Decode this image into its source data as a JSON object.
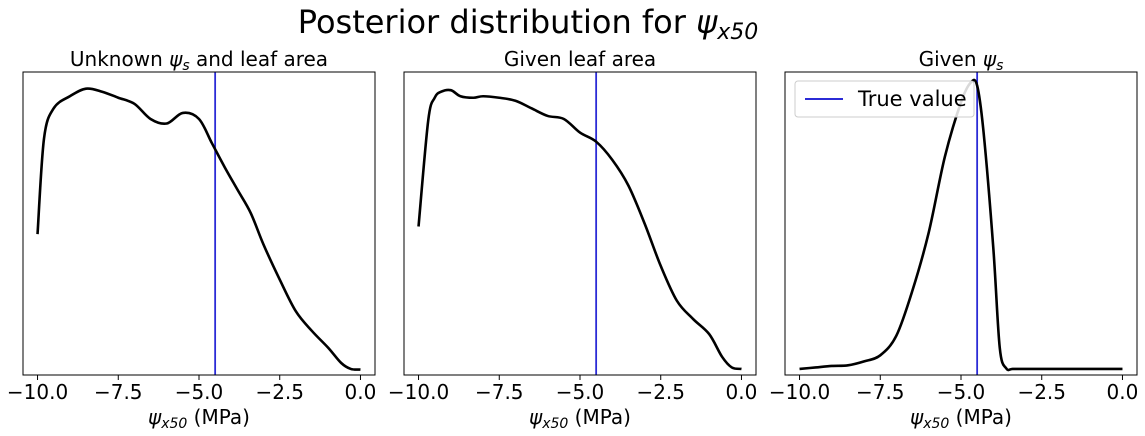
{
  "figure": {
    "title_main": "Posterior distribution for ",
    "title_symbol": "ψ",
    "title_sub": "x50"
  },
  "colors": {
    "curve": "#000000",
    "true_value_line": "#2b2bd6",
    "axes": "#000000",
    "background": "#ffffff"
  },
  "legend": {
    "label": "True value",
    "location": "upper-left",
    "panel": 2
  },
  "chart_data": [
    {
      "type": "line",
      "title": "Unknown ψ_s and leaf area",
      "title_parts": {
        "pre": "Unknown ",
        "sym": "ψ",
        "sub": "s",
        "post": " and leaf area"
      },
      "xlabel": {
        "sym": "ψ",
        "sub": "x50",
        "post": " (MPa)"
      },
      "xlim": [
        -10.45,
        0.45
      ],
      "ylim": [
        0.0,
        1.0
      ],
      "xticks": [
        -10.0,
        -7.5,
        -5.0,
        -2.5,
        0.0
      ],
      "xtick_labels": [
        "−10.0",
        "−7.5",
        "−5.0",
        "−2.5",
        "0.0"
      ],
      "yticks": [],
      "grid": false,
      "true_value": -4.5,
      "series": [
        {
          "x": [
            -10.0,
            -9.8,
            -9.5,
            -9.0,
            -8.5,
            -8.0,
            -7.5,
            -7.0,
            -6.5,
            -6.0,
            -5.5,
            -5.0,
            -4.6,
            -4.2,
            -3.8,
            -3.4,
            -3.0,
            -2.5,
            -2.0,
            -1.5,
            -1.0,
            -0.6,
            -0.3,
            0.0
          ],
          "y": [
            0.465,
            0.78,
            0.88,
            0.92,
            0.945,
            0.935,
            0.915,
            0.895,
            0.845,
            0.83,
            0.865,
            0.845,
            0.765,
            0.685,
            0.61,
            0.535,
            0.43,
            0.315,
            0.21,
            0.145,
            0.09,
            0.04,
            0.02,
            0.018
          ]
        }
      ]
    },
    {
      "type": "line",
      "title": "Given leaf area",
      "title_parts": {
        "pre": "Given leaf area",
        "sym": "",
        "sub": "",
        "post": ""
      },
      "xlabel": {
        "sym": "ψ",
        "sub": "x50",
        "post": " (MPa)"
      },
      "xlim": [
        -10.45,
        0.45
      ],
      "ylim": [
        0.0,
        1.0
      ],
      "xticks": [
        -10.0,
        -7.5,
        -5.0,
        -2.5,
        0.0
      ],
      "xtick_labels": [
        "−10.0",
        "−7.5",
        "−5.0",
        "−2.5",
        "0.0"
      ],
      "yticks": [],
      "grid": false,
      "true_value": -4.5,
      "series": [
        {
          "x": [
            -10.0,
            -9.7,
            -9.5,
            -9.3,
            -9.0,
            -8.7,
            -8.3,
            -8.0,
            -7.5,
            -7.0,
            -6.5,
            -6.0,
            -5.5,
            -5.0,
            -4.5,
            -4.0,
            -3.5,
            -3.0,
            -2.5,
            -2.0,
            -1.5,
            -1.0,
            -0.6,
            -0.3,
            0.0
          ],
          "y": [
            0.49,
            0.84,
            0.915,
            0.935,
            0.94,
            0.92,
            0.915,
            0.92,
            0.915,
            0.905,
            0.88,
            0.855,
            0.845,
            0.8,
            0.77,
            0.71,
            0.625,
            0.5,
            0.36,
            0.245,
            0.185,
            0.135,
            0.06,
            0.025,
            0.02
          ]
        }
      ]
    },
    {
      "type": "line",
      "title": "Given ψ_s",
      "title_parts": {
        "pre": "Given ",
        "sym": "ψ",
        "sub": "s",
        "post": ""
      },
      "xlabel": {
        "sym": "ψ",
        "sub": "x50",
        "post": " (MPa)"
      },
      "xlim": [
        -10.45,
        0.45
      ],
      "ylim": [
        0.0,
        1.0
      ],
      "xticks": [
        -10.0,
        -7.5,
        -5.0,
        -2.5,
        0.0
      ],
      "xtick_labels": [
        "−10.0",
        "−7.5",
        "−5.0",
        "−2.5",
        "0.0"
      ],
      "yticks": [],
      "grid": false,
      "true_value": -4.5,
      "series": [
        {
          "x": [
            -10.0,
            -9.5,
            -9.0,
            -8.5,
            -8.0,
            -7.5,
            -7.0,
            -6.5,
            -6.0,
            -5.5,
            -5.0,
            -4.7,
            -4.5,
            -4.3,
            -4.0,
            -3.8,
            -3.6,
            -3.4,
            -3.0,
            -2.0,
            -1.0,
            0.0
          ],
          "y": [
            0.02,
            0.025,
            0.03,
            0.032,
            0.045,
            0.065,
            0.13,
            0.28,
            0.47,
            0.72,
            0.9,
            0.965,
            0.955,
            0.8,
            0.42,
            0.09,
            0.022,
            0.02,
            0.02,
            0.02,
            0.02,
            0.02
          ]
        }
      ]
    }
  ]
}
